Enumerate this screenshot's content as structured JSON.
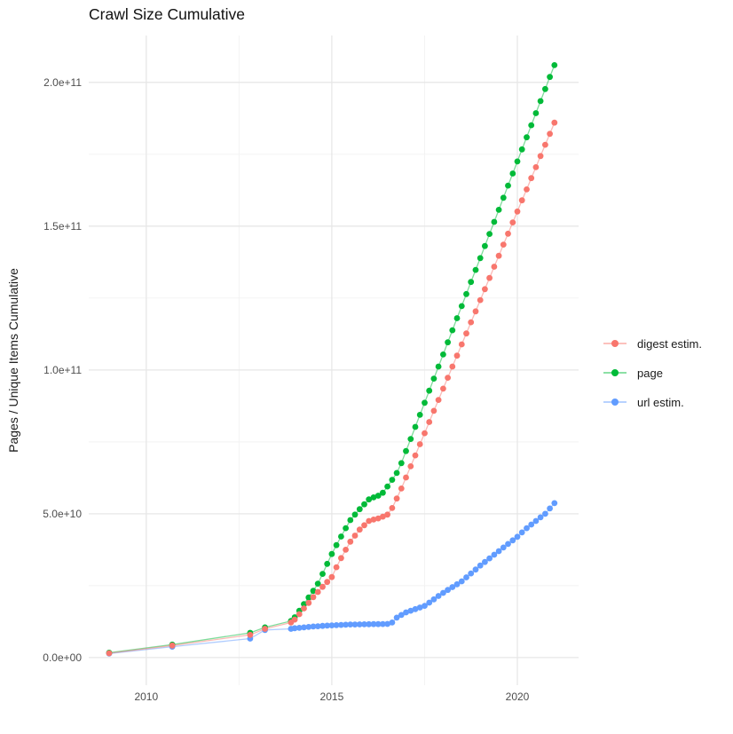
{
  "chart_data": {
    "type": "line-scatter",
    "title": "Crawl Size Cumulative",
    "xlabel": "",
    "ylabel": "Pages / Unique Items Cumulative",
    "legend_position": "right",
    "grid": {
      "major_color": "#e7e7e7",
      "minor_color": "#f2f2f2",
      "background": "#ffffff"
    },
    "value_unit": "billions (1e9 pages / items)",
    "xlim": [
      2008.45,
      2021.65
    ],
    "ylim": [
      -9.6,
      216.3
    ],
    "x_ticks": [
      {
        "value": 2010,
        "label": "2010"
      },
      {
        "value": 2015,
        "label": "2015"
      },
      {
        "value": 2020,
        "label": "2020"
      }
    ],
    "x_minor": [
      2012.5,
      2017.5
    ],
    "y_ticks": [
      {
        "value": 0,
        "label": "0.0e+00"
      },
      {
        "value": 50,
        "label": "5.0e+10"
      },
      {
        "value": 100,
        "label": "1.0e+11"
      },
      {
        "value": 150,
        "label": "1.5e+11"
      },
      {
        "value": 200,
        "label": "2.0e+11"
      }
    ],
    "y_minor": [
      25,
      75,
      125,
      175
    ],
    "x": [
      2009,
      2010.7,
      2012.8,
      2013.2,
      2013.9,
      2014,
      2014.125,
      2014.25,
      2014.375,
      2014.5,
      2014.625,
      2014.75,
      2014.875,
      2015,
      2015.125,
      2015.25,
      2015.375,
      2015.5,
      2015.625,
      2015.75,
      2015.875,
      2016,
      2016.125,
      2016.25,
      2016.375,
      2016.5,
      2016.625,
      2016.75,
      2016.875,
      2017,
      2017.125,
      2017.25,
      2017.375,
      2017.5,
      2017.625,
      2017.75,
      2017.875,
      2018,
      2018.125,
      2018.25,
      2018.375,
      2018.5,
      2018.625,
      2018.75,
      2018.875,
      2019,
      2019.125,
      2019.25,
      2019.375,
      2019.5,
      2019.625,
      2019.75,
      2019.875,
      2020,
      2020.125,
      2020.25,
      2020.375,
      2020.5,
      2020.625,
      2020.75,
      2020.875,
      2021
    ],
    "series": [
      {
        "name": "digest estim.",
        "color": "#F8766D",
        "values": [
          1.5,
          4.2,
          7.9,
          10,
          12.2,
          13.2,
          15.1,
          17.1,
          19,
          21,
          22.8,
          24.6,
          26.3,
          28,
          31.4,
          34.6,
          37.5,
          40.3,
          42.4,
          44.5,
          46,
          47.5,
          48,
          48.4,
          49,
          49.7,
          52,
          55.3,
          58.8,
          62.6,
          66.5,
          70.3,
          74.2,
          78,
          81.9,
          85.8,
          89.6,
          93.5,
          97.3,
          101.2,
          105,
          108.9,
          112.7,
          116.6,
          120.4,
          124.3,
          128.1,
          132,
          135.9,
          139.7,
          143.6,
          147.4,
          151.3,
          155.1,
          159,
          162.8,
          166.7,
          170.5,
          174.4,
          178.3,
          182.1,
          186
        ]
      },
      {
        "name": "page",
        "color": "#00BA38",
        "values": [
          1.7,
          4.5,
          8.6,
          10.5,
          12.7,
          14,
          16.3,
          18.6,
          20.9,
          23.2,
          25.7,
          29.1,
          32.6,
          36,
          39.1,
          42.1,
          45,
          47.8,
          49.7,
          51.6,
          53.3,
          55,
          55.7,
          56.3,
          57.3,
          59.5,
          61.8,
          64.2,
          67.6,
          71.8,
          76,
          80.2,
          84.4,
          88.6,
          92.8,
          97,
          101.2,
          105.4,
          109.6,
          113.8,
          118,
          122.2,
          126.4,
          130.6,
          134.8,
          138.9,
          143.1,
          147.3,
          151.5,
          155.7,
          159.9,
          164.1,
          168.3,
          172.5,
          176.7,
          180.9,
          185.1,
          189.3,
          193.5,
          197.7,
          201.9,
          206
        ]
      },
      {
        "name": "url estim.",
        "color": "#619CFF",
        "values": [
          1.4,
          3.8,
          6.6,
          9.6,
          10,
          10.2,
          10.35,
          10.5,
          10.65,
          10.8,
          10.9,
          11,
          11.1,
          11.2,
          11.27,
          11.35,
          11.42,
          11.5,
          11.52,
          11.55,
          11.57,
          11.6,
          11.62,
          11.64,
          11.66,
          11.68,
          12.2,
          13.9,
          14.8,
          15.7,
          16.3,
          16.85,
          17.4,
          18,
          19.1,
          20.25,
          21.4,
          22.5,
          23.5,
          24.5,
          25.5,
          26.5,
          27.9,
          29.25,
          30.6,
          32,
          33.25,
          34.5,
          35.75,
          37,
          38.25,
          39.5,
          40.75,
          42,
          43.5,
          45,
          46.25,
          47.5,
          48.75,
          50,
          51.85,
          53.7
        ]
      }
    ],
    "draw_order": [
      2,
      1,
      0
    ]
  }
}
